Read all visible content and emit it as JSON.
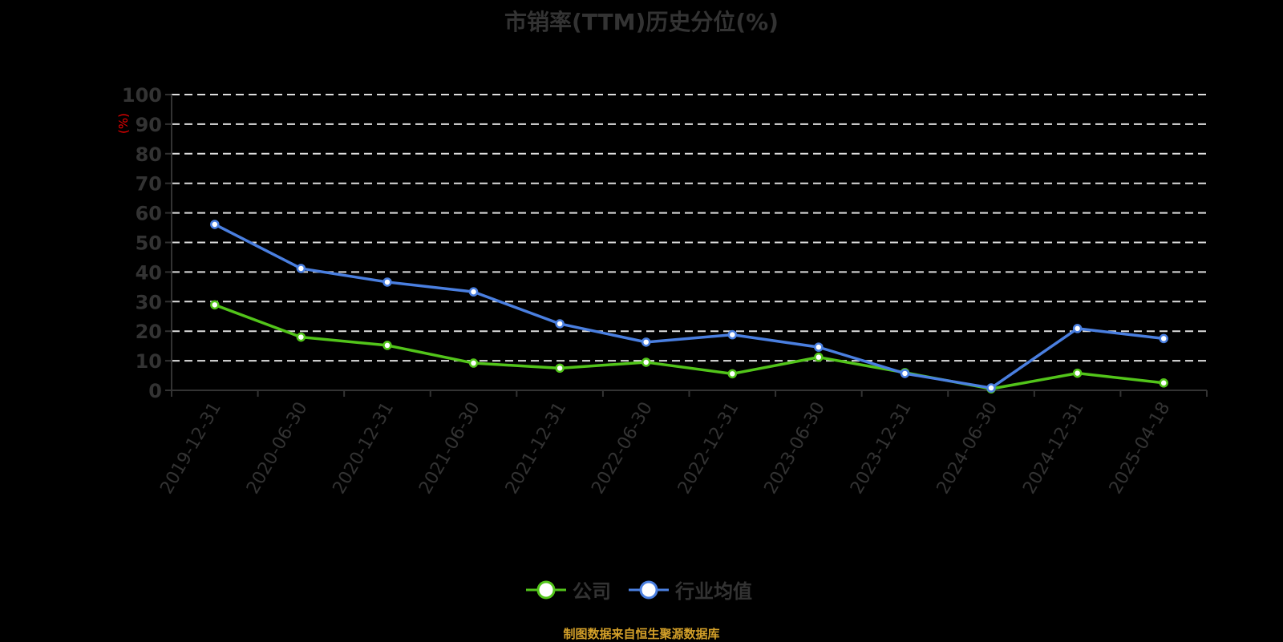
{
  "title": "市销率(TTM)历史分位(%)",
  "y_unit": "(%)",
  "footer": "制图数据来自恒生聚源数据库",
  "legend": [
    {
      "label": "公司",
      "color": "#52c41a"
    },
    {
      "label": "行业均值",
      "color": "#4a7fe0"
    }
  ],
  "chart_data": {
    "type": "line",
    "title": "市销率(TTM)历史分位(%)",
    "xlabel": "",
    "ylabel": "(%)",
    "ylim": [
      0,
      100
    ],
    "yticks": [
      0,
      10,
      20,
      30,
      40,
      50,
      60,
      70,
      80,
      90,
      100
    ],
    "grid": true,
    "legend_position": "bottom",
    "categories": [
      "2019-12-31",
      "2020-06-30",
      "2020-12-31",
      "2021-06-30",
      "2021-12-31",
      "2022-06-30",
      "2022-12-31",
      "2023-06-30",
      "2023-12-31",
      "2024-06-30",
      "2024-12-31",
      "2025-04-18"
    ],
    "series": [
      {
        "name": "公司",
        "color": "#52c41a",
        "values": [
          28.9,
          18.0,
          15.2,
          9.2,
          7.5,
          9.5,
          5.6,
          11.2,
          6.0,
          0.5,
          5.8,
          2.5
        ]
      },
      {
        "name": "行业均值",
        "color": "#4a7fe0",
        "values": [
          56.1,
          41.2,
          36.6,
          33.3,
          22.5,
          16.3,
          18.8,
          14.6,
          5.7,
          0.8,
          20.9,
          17.5
        ]
      }
    ]
  }
}
